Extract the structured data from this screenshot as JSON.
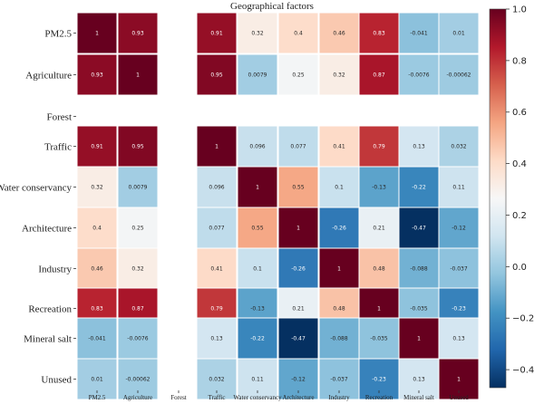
{
  "chart_data": {
    "type": "heatmap",
    "title": "Geographical factors",
    "xlabel": "",
    "ylabel": "",
    "rows": [
      "PM2.5",
      "Agriculture",
      "Forest",
      "Traffic",
      "Water conservancy",
      "Architecture",
      "Industry",
      "Recreation",
      "Mineral salt",
      "Unused"
    ],
    "columns": [
      "PM2.5",
      "Agriculture",
      "Forest",
      "Traffic",
      "Water conservancy",
      "Architecture",
      "Industry",
      "Recreation",
      "Mineral salt",
      "Unused"
    ],
    "values": [
      [
        1,
        0.93,
        null,
        0.91,
        0.32,
        0.4,
        0.46,
        0.83,
        -0.041,
        0.01
      ],
      [
        0.93,
        1,
        null,
        0.95,
        0.0079,
        0.25,
        0.32,
        0.87,
        -0.0076,
        -0.00062
      ],
      [
        null,
        null,
        null,
        null,
        null,
        null,
        null,
        null,
        null,
        null
      ],
      [
        0.91,
        0.95,
        null,
        1,
        0.096,
        0.077,
        0.41,
        0.79,
        0.13,
        0.032
      ],
      [
        0.32,
        0.0079,
        null,
        0.096,
        1,
        0.55,
        0.1,
        -0.13,
        -0.22,
        0.11
      ],
      [
        0.4,
        0.25,
        null,
        0.077,
        0.55,
        1,
        -0.26,
        0.21,
        -0.47,
        -0.12
      ],
      [
        0.46,
        0.32,
        null,
        0.41,
        0.1,
        -0.26,
        1,
        0.48,
        -0.088,
        -0.037
      ],
      [
        0.83,
        0.87,
        null,
        0.79,
        -0.13,
        0.21,
        0.48,
        1,
        -0.035,
        -0.23
      ],
      [
        -0.041,
        -0.0076,
        null,
        0.13,
        -0.22,
        -0.47,
        -0.088,
        -0.035,
        1,
        0.13
      ],
      [
        0.01,
        -0.00062,
        null,
        0.032,
        0.11,
        -0.12,
        -0.037,
        -0.23,
        0.13,
        1
      ]
    ],
    "cell_labels": [
      [
        "1",
        "0.93",
        "",
        "0.91",
        "0.32",
        "0.4",
        "0.46",
        "0.83",
        "-0.041",
        "0.01"
      ],
      [
        "0.93",
        "1",
        "",
        "0.95",
        "0.0079",
        "0.25",
        "0.32",
        "0.87",
        "-0.0076",
        "-0.00062"
      ],
      [
        "",
        "",
        "",
        "",
        "",
        "",
        "",
        "",
        "",
        ""
      ],
      [
        "0.91",
        "0.95",
        "",
        "1",
        "0.096",
        "0.077",
        "0.41",
        "0.79",
        "0.13",
        "0.032"
      ],
      [
        "0.32",
        "0.0079",
        "",
        "0.096",
        "1",
        "0.55",
        "0.1",
        "-0.13",
        "-0.22",
        "0.11"
      ],
      [
        "0.4",
        "0.25",
        "",
        "0.077",
        "0.55",
        "1",
        "-0.26",
        "0.21",
        "-0.47",
        "-0.12"
      ],
      [
        "0.46",
        "0.32",
        "",
        "0.41",
        "0.1",
        "-0.26",
        "1",
        "0.48",
        "-0.088",
        "-0.037"
      ],
      [
        "0.83",
        "0.87",
        "",
        "0.79",
        "-0.13",
        "0.21",
        "0.48",
        "1",
        "-0.035",
        "-0.23"
      ],
      [
        "-0.041",
        "-0.0076",
        "",
        "0.13",
        "-0.22",
        "-0.47",
        "-0.088",
        "-0.035",
        "1",
        "0.13"
      ],
      [
        "0.01",
        "-0.00062",
        "",
        "0.032",
        "0.11",
        "-0.12",
        "-0.037",
        "-0.23",
        "0.13",
        "1"
      ]
    ],
    "colorscale": "RdBu_r",
    "vmin": -0.47,
    "vmax": 1.0,
    "colorbar_ticks": [
      "−0.4",
      "−0.2",
      "0.0",
      "0.2",
      "0.4",
      "0.6",
      "0.8",
      "1.0"
    ],
    "colorbar_tick_values": [
      -0.4,
      -0.2,
      0.0,
      0.2,
      0.4,
      0.6,
      0.8,
      1.0
    ],
    "legend_placement": "right",
    "grid": false
  }
}
